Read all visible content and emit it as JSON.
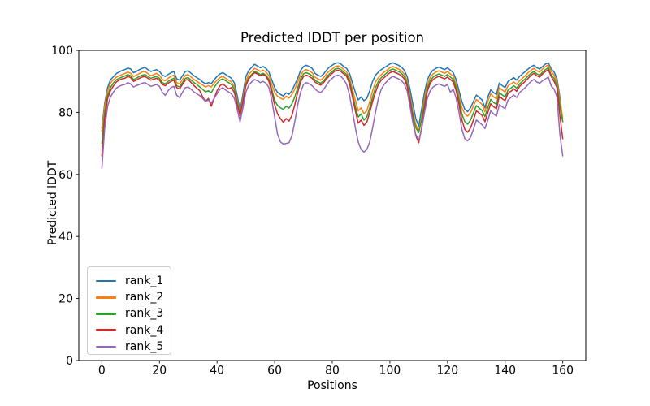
{
  "chart_data": {
    "type": "line",
    "title": "Predicted lDDT per position",
    "xlabel": "Positions",
    "ylabel": "Predicted lDDT",
    "xlim": [
      -8,
      168
    ],
    "ylim": [
      0,
      100
    ],
    "x_ticks": [
      0,
      20,
      40,
      60,
      80,
      100,
      120,
      140,
      160
    ],
    "y_ticks": [
      0,
      20,
      40,
      60,
      80,
      100
    ],
    "grid": false,
    "legend_position": "lower left",
    "x_start": 0,
    "x_step": 1,
    "series": [
      {
        "name": "rank_1",
        "color": "#1f77b4",
        "values": [
          75.0,
          83.0,
          88.0,
          90.5,
          91.5,
          92.5,
          93.0,
          93.5,
          93.8,
          94.3,
          94.0,
          92.8,
          93.2,
          93.8,
          94.2,
          94.5,
          93.8,
          93.2,
          93.5,
          93.8,
          93.2,
          92.0,
          91.6,
          92.2,
          92.8,
          93.2,
          90.8,
          90.4,
          91.8,
          93.2,
          93.4,
          92.6,
          91.8,
          91.2,
          90.6,
          89.8,
          89.2,
          89.6,
          89.3,
          90.5,
          91.6,
          92.4,
          92.8,
          92.2,
          91.6,
          91.0,
          89.5,
          85.5,
          80.5,
          86.0,
          91.5,
          93.5,
          94.5,
          95.5,
          95.0,
          94.4,
          94.8,
          94.2,
          93.0,
          90.5,
          88.0,
          86.5,
          85.8,
          85.3,
          86.3,
          85.8,
          87.0,
          89.0,
          91.0,
          93.5,
          94.8,
          95.2,
          94.8,
          94.2,
          92.6,
          92.0,
          91.6,
          92.4,
          93.6,
          94.6,
          95.2,
          95.8,
          96.0,
          95.6,
          94.8,
          94.2,
          92.5,
          89.5,
          86.5,
          84.0,
          85.0,
          83.8,
          84.5,
          87.0,
          90.0,
          92.0,
          93.0,
          93.8,
          94.4,
          95.0,
          95.6,
          96.0,
          95.6,
          95.2,
          94.6,
          93.6,
          91.5,
          87.5,
          82.5,
          78.0,
          75.5,
          81.0,
          86.5,
          90.5,
          92.5,
          93.6,
          94.2,
          94.6,
          94.2,
          93.8,
          94.4,
          93.6,
          92.8,
          90.5,
          87.0,
          83.5,
          81.0,
          80.2,
          81.5,
          83.5,
          85.6,
          84.8,
          84.0,
          81.5,
          85.0,
          87.3,
          86.4,
          85.8,
          89.5,
          88.6,
          88.0,
          90.0,
          90.6,
          91.2,
          90.4,
          91.6,
          92.4,
          93.2,
          94.0,
          94.7,
          95.2,
          94.4,
          94.0,
          94.8,
          95.6,
          96.0,
          94.0,
          93.0,
          91.0,
          85.0,
          77.0
        ]
      },
      {
        "name": "rank_2",
        "color": "#ff7f0e",
        "values": [
          74.0,
          82.0,
          87.0,
          89.5,
          90.5,
          91.3,
          91.8,
          92.2,
          92.5,
          93.0,
          92.6,
          91.5,
          92.0,
          92.5,
          93.0,
          93.2,
          92.5,
          91.8,
          92.2,
          92.6,
          92.0,
          90.6,
          90.2,
          91.0,
          91.6,
          92.0,
          89.6,
          89.2,
          90.6,
          92.0,
          92.2,
          91.4,
          90.6,
          90.0,
          89.4,
          88.8,
          88.2,
          88.6,
          88.2,
          89.4,
          90.4,
          91.2,
          91.6,
          91.0,
          90.4,
          89.8,
          88.2,
          84.0,
          79.5,
          84.5,
          90.0,
          92.2,
          93.2,
          94.2,
          93.8,
          93.2,
          93.6,
          93.0,
          91.8,
          89.0,
          86.5,
          85.2,
          84.6,
          84.2,
          85.2,
          84.6,
          85.8,
          87.5,
          89.8,
          92.0,
          93.4,
          93.8,
          93.4,
          92.8,
          91.4,
          90.8,
          90.4,
          91.2,
          92.4,
          93.4,
          94.0,
          94.8,
          95.0,
          94.6,
          93.8,
          93.0,
          91.0,
          87.5,
          84.0,
          80.5,
          81.5,
          79.6,
          80.5,
          83.5,
          87.0,
          89.8,
          91.2,
          92.2,
          93.0,
          93.6,
          94.4,
          94.8,
          94.4,
          94.0,
          93.4,
          92.4,
          90.0,
          85.5,
          80.0,
          76.0,
          74.0,
          78.5,
          84.5,
          89.0,
          91.2,
          92.4,
          93.0,
          93.4,
          93.0,
          92.6,
          93.2,
          92.4,
          91.6,
          89.0,
          85.5,
          81.5,
          79.5,
          78.8,
          80.0,
          82.0,
          84.2,
          83.4,
          82.6,
          80.2,
          83.6,
          86.0,
          85.0,
          84.4,
          88.0,
          87.2,
          86.6,
          88.6,
          89.2,
          89.8,
          89.0,
          90.2,
          91.0,
          91.8,
          92.8,
          93.6,
          94.2,
          93.4,
          93.0,
          94.0,
          94.8,
          95.4,
          93.2,
          92.0,
          90.0,
          84.0,
          78.0
        ]
      },
      {
        "name": "rank_3",
        "color": "#2ca02c",
        "values": [
          70.0,
          80.0,
          85.5,
          88.0,
          89.5,
          90.5,
          91.0,
          91.4,
          91.7,
          92.2,
          91.8,
          90.6,
          91.0,
          91.6,
          92.0,
          92.2,
          91.6,
          91.0,
          91.3,
          91.6,
          91.0,
          89.6,
          89.2,
          90.0,
          90.6,
          91.0,
          88.6,
          88.2,
          89.6,
          91.0,
          91.2,
          90.4,
          89.6,
          89.0,
          88.2,
          87.4,
          86.6,
          87.0,
          86.4,
          88.0,
          89.4,
          90.4,
          90.8,
          90.2,
          89.6,
          89.0,
          87.4,
          83.2,
          79.0,
          83.8,
          89.0,
          91.2,
          92.2,
          93.2,
          92.8,
          92.2,
          92.6,
          92.0,
          90.6,
          87.5,
          84.0,
          82.2,
          81.5,
          81.0,
          82.0,
          81.4,
          82.8,
          85.0,
          88.0,
          90.8,
          92.4,
          92.8,
          92.4,
          91.8,
          90.4,
          89.8,
          89.4,
          90.2,
          91.4,
          92.4,
          93.2,
          94.0,
          94.2,
          93.8,
          93.0,
          92.2,
          90.0,
          86.0,
          82.0,
          78.5,
          79.5,
          77.5,
          78.5,
          81.5,
          85.0,
          88.0,
          90.0,
          91.2,
          92.0,
          92.8,
          93.6,
          94.0,
          93.6,
          93.2,
          92.6,
          91.6,
          89.2,
          84.5,
          79.0,
          75.0,
          73.5,
          77.5,
          83.0,
          87.8,
          90.2,
          91.4,
          92.0,
          92.4,
          92.0,
          91.6,
          92.2,
          91.4,
          90.6,
          88.0,
          84.0,
          79.5,
          77.0,
          76.2,
          77.5,
          79.8,
          82.2,
          81.4,
          80.6,
          78.6,
          81.6,
          84.2,
          83.2,
          82.6,
          86.4,
          85.6,
          85.0,
          87.2,
          87.8,
          88.6,
          87.8,
          89.2,
          90.0,
          90.8,
          91.8,
          92.6,
          93.2,
          92.4,
          92.0,
          93.0,
          93.8,
          94.4,
          92.0,
          91.0,
          89.0,
          82.0,
          77.0
        ]
      },
      {
        "name": "rank_4",
        "color": "#d62728",
        "values": [
          66.0,
          78.0,
          84.5,
          87.0,
          88.5,
          89.8,
          90.4,
          90.8,
          91.0,
          91.6,
          91.2,
          90.0,
          90.4,
          91.0,
          91.4,
          91.6,
          91.0,
          90.4,
          90.7,
          91.0,
          90.4,
          89.0,
          88.6,
          89.4,
          90.0,
          90.4,
          88.0,
          87.6,
          89.0,
          90.4,
          90.6,
          89.6,
          88.6,
          87.8,
          87.0,
          85.0,
          83.5,
          84.5,
          82.0,
          84.5,
          87.0,
          88.6,
          89.2,
          88.4,
          87.6,
          88.0,
          86.4,
          82.5,
          79.0,
          83.5,
          88.5,
          90.8,
          91.8,
          92.8,
          92.4,
          91.8,
          92.2,
          91.6,
          90.0,
          86.5,
          82.5,
          79.5,
          78.0,
          76.8,
          78.0,
          77.2,
          79.0,
          82.5,
          86.5,
          89.8,
          91.6,
          92.0,
          91.6,
          91.0,
          89.8,
          89.2,
          88.8,
          89.6,
          90.8,
          91.8,
          92.6,
          93.4,
          93.6,
          93.2,
          92.4,
          91.6,
          89.2,
          85.0,
          80.5,
          76.5,
          77.5,
          75.8,
          76.8,
          80.0,
          83.5,
          86.5,
          89.0,
          90.4,
          91.2,
          92.0,
          92.8,
          93.2,
          92.8,
          92.4,
          91.8,
          90.8,
          88.4,
          83.5,
          77.5,
          72.5,
          70.2,
          75.0,
          81.5,
          86.8,
          89.4,
          90.6,
          91.2,
          91.6,
          91.2,
          90.8,
          91.4,
          90.6,
          89.8,
          87.0,
          82.5,
          77.5,
          74.5,
          73.6,
          75.0,
          77.5,
          80.5,
          79.8,
          79.0,
          77.0,
          80.0,
          82.8,
          81.8,
          81.2,
          85.2,
          84.4,
          83.8,
          86.2,
          86.8,
          87.6,
          86.8,
          88.4,
          89.2,
          90.0,
          91.0,
          92.0,
          92.6,
          91.8,
          91.4,
          92.4,
          93.2,
          93.8,
          91.5,
          90.0,
          88.0,
          79.0,
          71.5
        ]
      },
      {
        "name": "rank_5",
        "color": "#9467bd",
        "values": [
          62.0,
          75.0,
          82.0,
          85.0,
          86.5,
          87.8,
          88.4,
          88.8,
          89.0,
          89.6,
          89.2,
          88.2,
          88.6,
          89.0,
          89.4,
          89.6,
          89.0,
          88.4,
          88.7,
          89.0,
          88.4,
          86.5,
          85.5,
          87.0,
          88.0,
          88.4,
          85.5,
          84.8,
          86.5,
          88.0,
          88.2,
          87.4,
          86.6,
          86.0,
          85.4,
          84.5,
          83.5,
          84.0,
          83.0,
          84.5,
          86.0,
          87.4,
          88.0,
          87.2,
          86.6,
          86.0,
          84.5,
          81.0,
          77.0,
          81.5,
          86.5,
          88.8,
          89.8,
          90.6,
          90.2,
          89.6,
          90.0,
          89.4,
          88.0,
          84.0,
          78.5,
          73.0,
          70.5,
          69.8,
          70.0,
          70.2,
          72.5,
          77.0,
          82.5,
          86.5,
          89.0,
          89.6,
          89.2,
          88.6,
          87.6,
          86.8,
          86.4,
          87.4,
          88.8,
          90.2,
          91.0,
          91.8,
          92.0,
          91.6,
          90.6,
          89.0,
          85.5,
          80.5,
          75.0,
          70.5,
          68.0,
          67.2,
          68.0,
          70.5,
          75.0,
          80.0,
          84.5,
          87.5,
          89.0,
          90.0,
          91.0,
          91.6,
          91.2,
          90.8,
          90.2,
          89.2,
          86.8,
          82.0,
          76.5,
          72.8,
          71.0,
          74.5,
          80.0,
          84.5,
          87.0,
          88.2,
          88.8,
          89.2,
          88.8,
          88.4,
          89.0,
          86.5,
          87.5,
          84.5,
          80.0,
          74.5,
          71.5,
          70.8,
          72.0,
          74.5,
          77.5,
          76.8,
          76.0,
          74.8,
          77.5,
          80.5,
          79.5,
          78.8,
          82.5,
          81.8,
          81.2,
          84.0,
          84.8,
          85.6,
          84.8,
          86.4,
          87.2,
          88.0,
          89.0,
          90.0,
          90.6,
          89.8,
          89.4,
          90.2,
          90.8,
          91.4,
          88.5,
          87.5,
          85.0,
          73.0,
          66.0
        ]
      }
    ]
  }
}
